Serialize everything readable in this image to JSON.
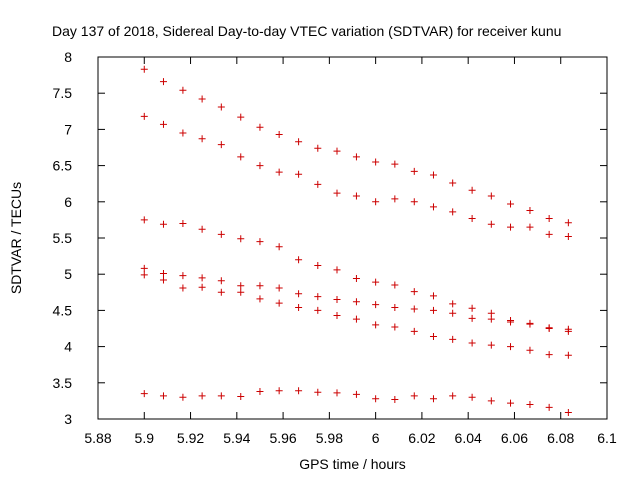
{
  "chart_data": {
    "type": "scatter",
    "title": "Day 137 of 2018, Sidereal Day-to-day VTEC variation (SDTVAR) for receiver kunu",
    "xlabel": "GPS time / hours",
    "ylabel": "SDTVAR / TECUs",
    "xlim": [
      5.88,
      6.1
    ],
    "ylim": [
      3,
      8
    ],
    "xticks": [
      5.88,
      5.9,
      5.92,
      5.94,
      5.96,
      5.98,
      6,
      6.02,
      6.04,
      6.06,
      6.08,
      6.1
    ],
    "xtick_labels": [
      "5.88",
      "5.9",
      "5.92",
      "5.94",
      "5.96",
      "5.98",
      "6",
      "6.02",
      "6.04",
      "6.06",
      "6.08",
      "6.1"
    ],
    "yticks": [
      3,
      3.5,
      4,
      4.5,
      5,
      5.5,
      6,
      6.5,
      7,
      7.5,
      8
    ],
    "ytick_labels": [
      "3",
      "3.5",
      "4",
      "4.5",
      "5",
      "5.5",
      "6",
      "6.5",
      "7",
      "7.5",
      "8"
    ],
    "grid": false,
    "marker": "+",
    "marker_color": "#cc0000",
    "x": [
      5.9,
      5.9083,
      5.9167,
      5.925,
      5.9333,
      5.9417,
      5.95,
      5.9583,
      5.9667,
      5.975,
      5.9833,
      5.9917,
      6.0,
      6.0083,
      6.0167,
      6.025,
      6.0333,
      6.0417,
      6.05,
      6.0583,
      6.0667,
      6.075,
      6.0833
    ],
    "series": [
      {
        "name": "s1",
        "values": [
          7.83,
          7.66,
          7.54,
          7.42,
          7.31,
          7.17,
          7.03,
          6.93,
          6.83,
          6.74,
          6.7,
          6.62,
          6.55,
          6.52,
          6.42,
          6.37,
          6.26,
          6.16,
          6.08,
          5.97,
          5.88,
          5.77,
          5.71
        ]
      },
      {
        "name": "s2",
        "values": [
          7.18,
          7.07,
          6.95,
          6.87,
          6.79,
          6.62,
          6.5,
          6.41,
          6.38,
          6.24,
          6.12,
          6.08,
          6.0,
          6.04,
          6.0,
          5.93,
          5.86,
          5.77,
          5.69,
          5.65,
          5.65,
          5.55,
          5.52
        ]
      },
      {
        "name": "s3",
        "values": [
          5.75,
          5.69,
          5.7,
          5.62,
          5.55,
          5.49,
          5.45,
          5.38,
          5.2,
          5.12,
          5.06,
          4.94,
          4.89,
          4.85,
          4.76,
          4.7,
          4.59,
          4.53,
          4.46,
          4.36,
          4.32,
          4.26,
          4.24
        ]
      },
      {
        "name": "s4",
        "values": [
          5.08,
          5.01,
          4.98,
          4.95,
          4.91,
          4.84,
          4.84,
          4.81,
          4.73,
          4.69,
          4.65,
          4.62,
          4.58,
          4.54,
          4.52,
          4.5,
          4.46,
          4.39,
          4.38,
          4.34,
          4.31,
          4.25,
          4.21
        ]
      },
      {
        "name": "s5",
        "values": [
          4.99,
          4.92,
          4.81,
          4.82,
          4.75,
          4.75,
          4.66,
          4.6,
          4.54,
          4.5,
          4.43,
          4.38,
          4.3,
          4.27,
          4.21,
          4.14,
          4.1,
          4.05,
          4.02,
          4.0,
          3.95,
          3.89,
          3.88
        ]
      },
      {
        "name": "s6",
        "values": [
          3.35,
          3.32,
          3.3,
          3.32,
          3.32,
          3.31,
          3.38,
          3.39,
          3.39,
          3.37,
          3.36,
          3.34,
          3.28,
          3.27,
          3.32,
          3.28,
          3.32,
          3.3,
          3.25,
          3.22,
          3.2,
          3.16,
          3.09
        ]
      }
    ]
  }
}
